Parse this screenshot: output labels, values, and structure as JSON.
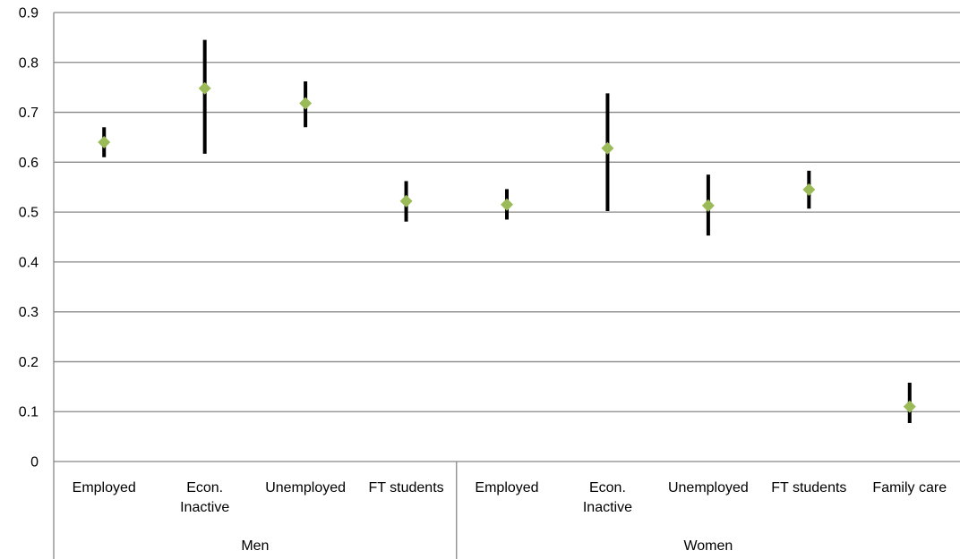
{
  "chart_data": {
    "type": "scatter",
    "title": "",
    "xlabel": "",
    "ylabel": "",
    "ylim": [
      0,
      0.9
    ],
    "y_ticks": [
      "0",
      "0.1",
      "0.2",
      "0.3",
      "0.4",
      "0.5",
      "0.6",
      "0.7",
      "0.8",
      "0.9"
    ],
    "grid": true,
    "legend": "none",
    "marker": "diamond",
    "colors": {
      "marker": "#9BBB59",
      "error_bar": "#000000",
      "gridline": "#878787"
    },
    "groups": [
      {
        "name": "Men",
        "categories": [
          {
            "label": [
              "Employed"
            ],
            "value": 0.64,
            "low": 0.61,
            "high": 0.67
          },
          {
            "label": [
              "Econ.",
              "Inactive"
            ],
            "value": 0.748,
            "low": 0.617,
            "high": 0.845
          },
          {
            "label": [
              "Unemployed"
            ],
            "value": 0.718,
            "low": 0.67,
            "high": 0.762
          },
          {
            "label": [
              "FT students"
            ],
            "value": 0.522,
            "low": 0.481,
            "high": 0.562
          }
        ]
      },
      {
        "name": "Women",
        "categories": [
          {
            "label": [
              "Employed"
            ],
            "value": 0.515,
            "low": 0.485,
            "high": 0.546
          },
          {
            "label": [
              "Econ.",
              "Inactive"
            ],
            "value": 0.628,
            "low": 0.502,
            "high": 0.738
          },
          {
            "label": [
              "Unemployed"
            ],
            "value": 0.513,
            "low": 0.453,
            "high": 0.575
          },
          {
            "label": [
              "FT students"
            ],
            "value": 0.545,
            "low": 0.507,
            "high": 0.583
          },
          {
            "label": [
              "Family care"
            ],
            "value": 0.11,
            "low": 0.077,
            "high": 0.158
          }
        ]
      }
    ]
  }
}
